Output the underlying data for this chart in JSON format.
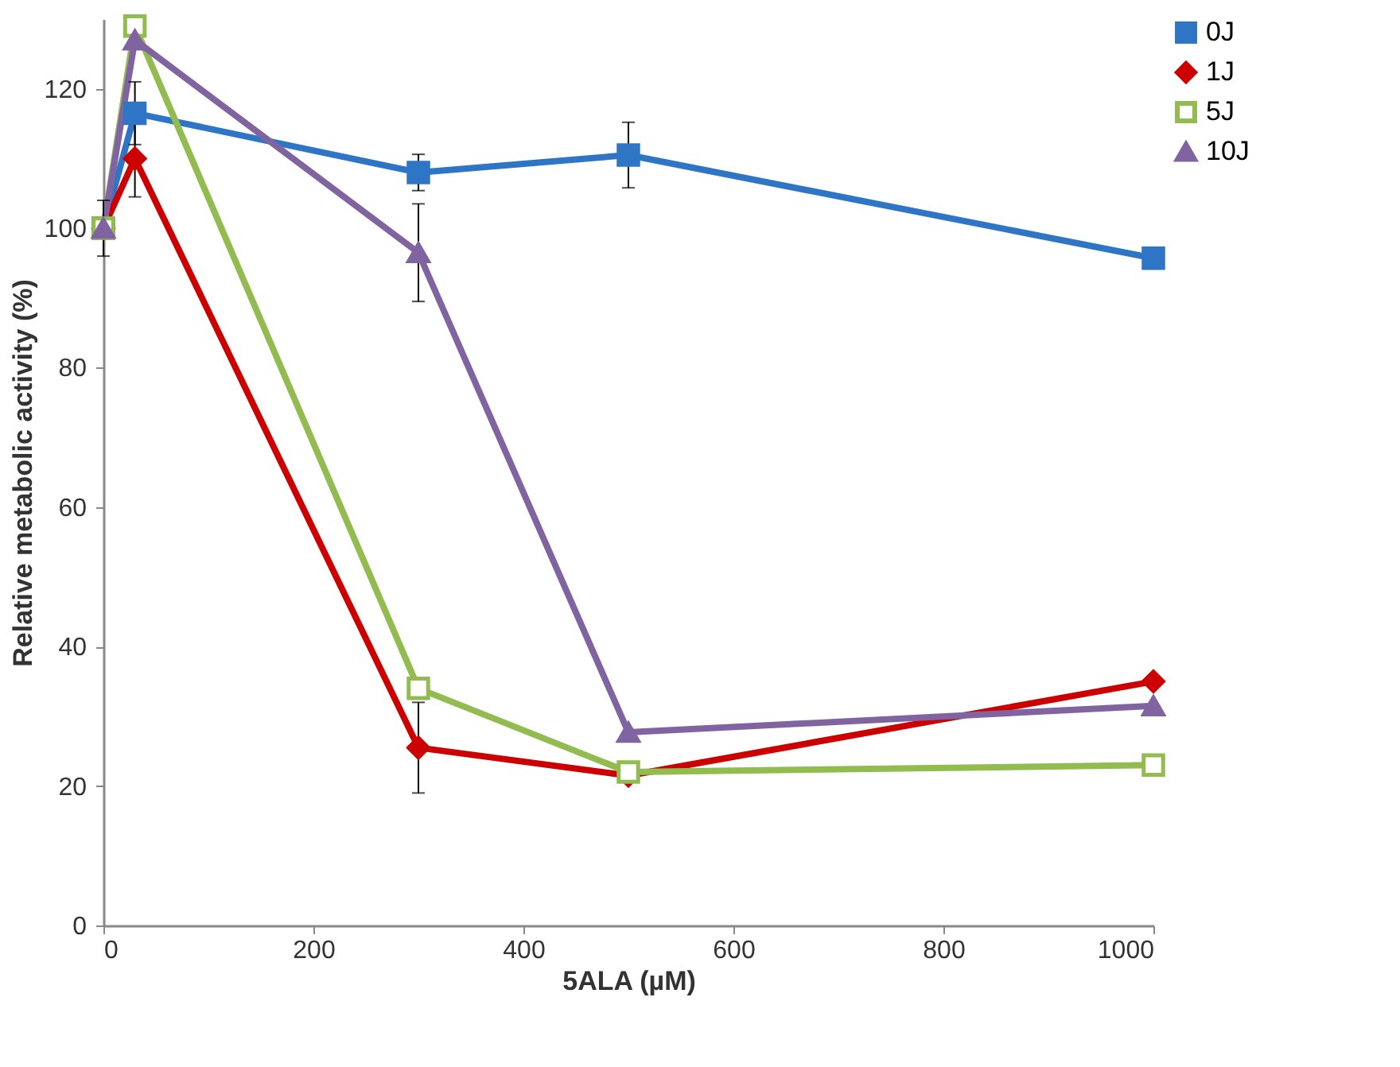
{
  "chart_data": {
    "type": "line",
    "xlabel": "5ALA (µM)",
    "ylabel": "Relative metabolic activity (%)",
    "x": [
      0,
      30,
      300,
      500,
      1000
    ],
    "xlim": [
      0,
      1000
    ],
    "xticks": [
      0,
      200,
      400,
      600,
      800,
      1000
    ],
    "ylim": [
      0,
      130
    ],
    "yticks": [
      0,
      20,
      40,
      60,
      80,
      100,
      120
    ],
    "grid": false,
    "legend": "right",
    "line_style": "solid",
    "series": [
      {
        "name": "0J",
        "color": "#2e75c6",
        "marker": "square",
        "values": [
          100,
          116.5,
          108,
          110.5,
          95.7
        ],
        "errors": [
          4,
          4.5,
          2.6,
          4.7,
          null
        ]
      },
      {
        "name": "1J",
        "color": "#cc0000",
        "marker": "diamond",
        "values": [
          100,
          110,
          25.5,
          21.5,
          35
        ],
        "errors": [
          null,
          5.5,
          6.5,
          null,
          null
        ]
      },
      {
        "name": "5J",
        "color": "#92bb50",
        "marker": "square",
        "values": [
          100,
          129,
          34,
          22,
          23
        ]
      },
      {
        "name": "10J",
        "color": "#8064a2",
        "marker": "triangle",
        "values": [
          100,
          127,
          96.5,
          27.7,
          31.5
        ],
        "errors": [
          null,
          null,
          7,
          null,
          null
        ]
      }
    ]
  }
}
